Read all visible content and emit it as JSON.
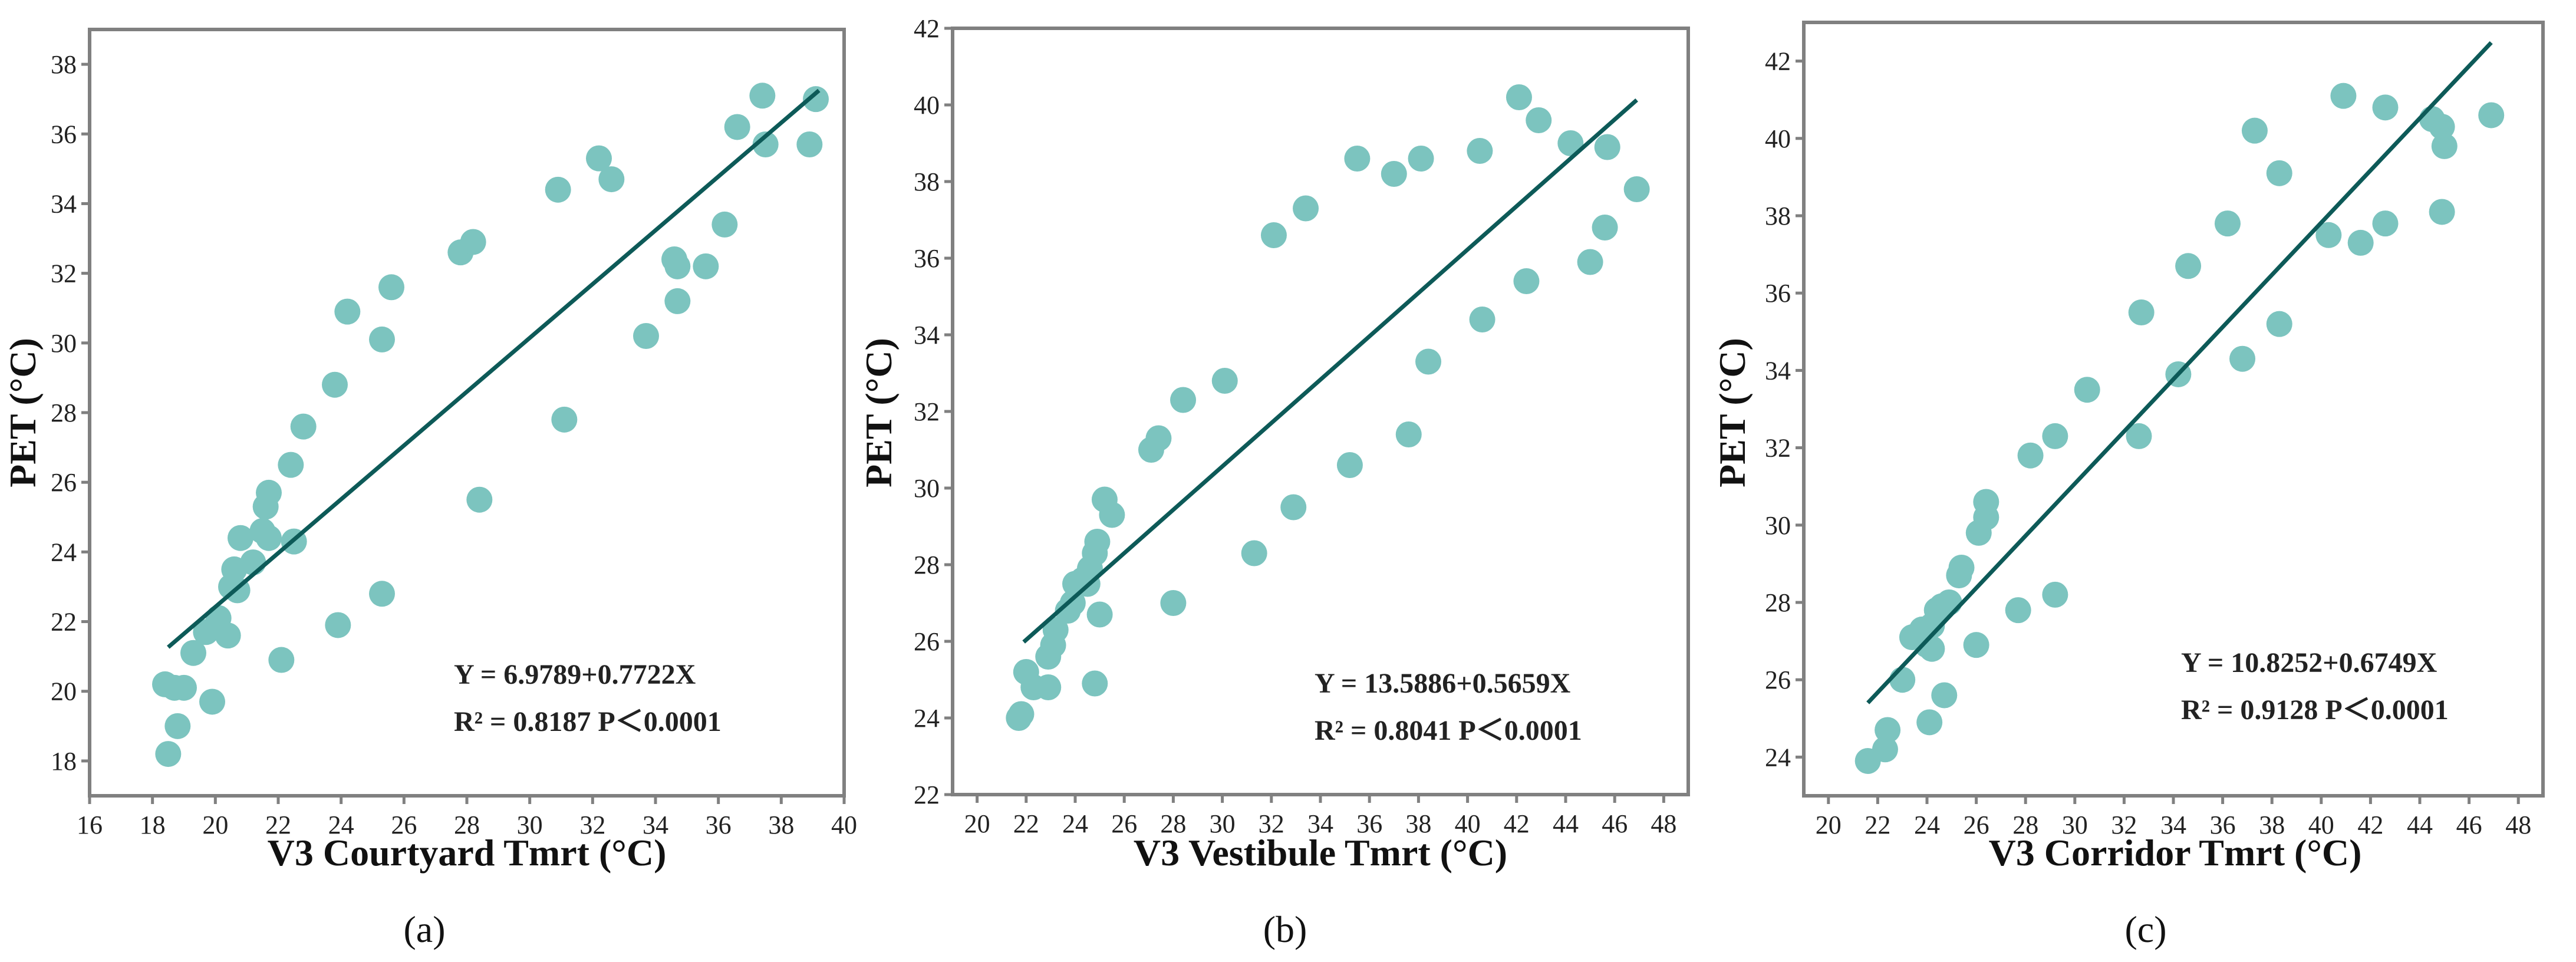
{
  "chart_data": [
    {
      "type": "scatter",
      "panel_label": "(a)",
      "xlabel": "V3 Courtyard Tmrt (°C)",
      "ylabel": "PET (°C)",
      "xlim": [
        16,
        40
      ],
      "ylim": [
        17,
        39
      ],
      "xticks": [
        16,
        18,
        20,
        22,
        24,
        26,
        28,
        30,
        32,
        34,
        36,
        38,
        40
      ],
      "yticks": [
        18,
        20,
        22,
        24,
        26,
        28,
        30,
        32,
        34,
        36,
        38
      ],
      "equation": "Y = 6.9789+0.7722X",
      "r2_label": "R² = 0.8187  P＜0.0001",
      "fit": {
        "intercept": 6.9789,
        "slope": 0.7722,
        "x_range": [
          18.5,
          39.2
        ]
      },
      "points": [
        [
          18.5,
          18.2
        ],
        [
          18.4,
          20.2
        ],
        [
          18.7,
          20.1
        ],
        [
          19.0,
          20.1
        ],
        [
          18.8,
          19.0
        ],
        [
          19.3,
          21.1
        ],
        [
          19.7,
          21.7
        ],
        [
          20.1,
          22.1
        ],
        [
          19.9,
          19.7
        ],
        [
          20.4,
          21.6
        ],
        [
          20.5,
          23.0
        ],
        [
          20.7,
          22.9
        ],
        [
          20.6,
          23.5
        ],
        [
          20.8,
          24.4
        ],
        [
          21.2,
          23.7
        ],
        [
          21.5,
          24.6
        ],
        [
          21.7,
          24.4
        ],
        [
          21.6,
          25.3
        ],
        [
          21.7,
          25.7
        ],
        [
          22.1,
          20.9
        ],
        [
          22.5,
          24.3
        ],
        [
          22.4,
          26.5
        ],
        [
          22.8,
          27.6
        ],
        [
          23.8,
          28.8
        ],
        [
          23.9,
          21.9
        ],
        [
          24.2,
          30.9
        ],
        [
          25.3,
          30.1
        ],
        [
          25.3,
          22.8
        ],
        [
          25.6,
          31.6
        ],
        [
          27.8,
          32.6
        ],
        [
          28.2,
          32.9
        ],
        [
          28.4,
          25.5
        ],
        [
          30.9,
          34.4
        ],
        [
          31.1,
          27.8
        ],
        [
          32.2,
          35.3
        ],
        [
          32.6,
          34.7
        ],
        [
          33.7,
          30.2
        ],
        [
          34.6,
          32.4
        ],
        [
          34.7,
          32.2
        ],
        [
          34.7,
          31.2
        ],
        [
          35.6,
          32.2
        ],
        [
          36.2,
          33.4
        ],
        [
          36.6,
          36.2
        ],
        [
          37.4,
          37.1
        ],
        [
          37.5,
          35.7
        ],
        [
          38.9,
          35.7
        ],
        [
          39.1,
          37.0
        ]
      ]
    },
    {
      "type": "scatter",
      "panel_label": "(b)",
      "xlabel": "V3 Vestibule Tmrt (°C)",
      "ylabel": "PET (°C)",
      "xlim": [
        19,
        49
      ],
      "ylim": [
        22,
        42
      ],
      "xticks": [
        20,
        22,
        24,
        26,
        28,
        30,
        32,
        34,
        36,
        38,
        40,
        42,
        44,
        46,
        48
      ],
      "yticks": [
        22,
        24,
        26,
        28,
        30,
        32,
        34,
        36,
        38,
        40,
        42
      ],
      "equation": "Y = 13.5886+0.5659X",
      "r2_label": "R² = 0.8041  P＜0.0001",
      "fit": {
        "intercept": 13.5886,
        "slope": 0.5659,
        "x_range": [
          21.9,
          46.9
        ]
      },
      "points": [
        [
          21.7,
          24.0
        ],
        [
          21.8,
          24.1
        ],
        [
          22.0,
          25.2
        ],
        [
          22.3,
          24.8
        ],
        [
          22.9,
          24.8
        ],
        [
          22.9,
          25.6
        ],
        [
          23.1,
          25.9
        ],
        [
          23.2,
          26.3
        ],
        [
          23.7,
          26.8
        ],
        [
          23.9,
          27.0
        ],
        [
          24.0,
          27.5
        ],
        [
          24.3,
          27.6
        ],
        [
          24.5,
          27.5
        ],
        [
          24.6,
          27.9
        ],
        [
          24.8,
          28.3
        ],
        [
          24.9,
          28.6
        ],
        [
          24.8,
          24.9
        ],
        [
          25.0,
          26.7
        ],
        [
          25.2,
          29.7
        ],
        [
          25.5,
          29.3
        ],
        [
          27.1,
          31.0
        ],
        [
          27.4,
          31.3
        ],
        [
          28.0,
          27.0
        ],
        [
          28.4,
          32.3
        ],
        [
          30.1,
          32.8
        ],
        [
          31.3,
          28.3
        ],
        [
          32.1,
          36.6
        ],
        [
          32.9,
          29.5
        ],
        [
          33.4,
          37.3
        ],
        [
          35.2,
          30.6
        ],
        [
          35.5,
          38.6
        ],
        [
          37.0,
          38.2
        ],
        [
          37.6,
          31.4
        ],
        [
          38.1,
          38.6
        ],
        [
          38.4,
          33.3
        ],
        [
          40.5,
          38.8
        ],
        [
          40.6,
          34.4
        ],
        [
          42.1,
          40.2
        ],
        [
          42.4,
          35.4
        ],
        [
          42.9,
          39.6
        ],
        [
          44.2,
          39.0
        ],
        [
          45.0,
          35.9
        ],
        [
          45.6,
          36.8
        ],
        [
          45.7,
          38.9
        ],
        [
          46.9,
          37.8
        ]
      ]
    },
    {
      "type": "scatter",
      "panel_label": "(c)",
      "xlabel": "V3 Corridor Tmrt (°C)",
      "ylabel": "PET (°C)",
      "xlim": [
        19,
        49
      ],
      "ylim": [
        23,
        43
      ],
      "xticks": [
        20,
        22,
        24,
        26,
        28,
        30,
        32,
        34,
        36,
        38,
        40,
        42,
        44,
        46,
        48
      ],
      "yticks": [
        24,
        26,
        28,
        30,
        32,
        34,
        36,
        38,
        40,
        42
      ],
      "equation": "Y = 10.8252+0.6749X",
      "r2_label": "R² = 0.9128  P＜0.0001",
      "fit": {
        "intercept": 10.8252,
        "slope": 0.6749,
        "x_range": [
          21.6,
          46.9
        ]
      },
      "points": [
        [
          21.6,
          23.9
        ],
        [
          22.3,
          24.2
        ],
        [
          22.4,
          24.7
        ],
        [
          23.0,
          26.0
        ],
        [
          23.4,
          27.1
        ],
        [
          23.8,
          27.3
        ],
        [
          24.0,
          26.9
        ],
        [
          24.2,
          26.8
        ],
        [
          24.2,
          27.4
        ],
        [
          24.4,
          27.8
        ],
        [
          24.6,
          27.9
        ],
        [
          24.9,
          28.0
        ],
        [
          24.1,
          24.9
        ],
        [
          24.7,
          25.6
        ],
        [
          25.3,
          28.7
        ],
        [
          25.4,
          28.9
        ],
        [
          26.0,
          26.9
        ],
        [
          26.1,
          29.8
        ],
        [
          26.4,
          30.2
        ],
        [
          26.4,
          30.6
        ],
        [
          27.7,
          27.8
        ],
        [
          28.2,
          31.8
        ],
        [
          29.2,
          32.3
        ],
        [
          29.2,
          28.2
        ],
        [
          30.5,
          33.5
        ],
        [
          32.7,
          35.5
        ],
        [
          32.6,
          32.3
        ],
        [
          34.2,
          33.9
        ],
        [
          34.6,
          36.7
        ],
        [
          36.2,
          37.8
        ],
        [
          36.8,
          34.3
        ],
        [
          37.3,
          40.2
        ],
        [
          38.3,
          39.1
        ],
        [
          38.3,
          35.2
        ],
        [
          40.3,
          37.5
        ],
        [
          40.9,
          41.1
        ],
        [
          41.6,
          37.3
        ],
        [
          42.6,
          37.8
        ],
        [
          42.6,
          40.8
        ],
        [
          44.5,
          40.5
        ],
        [
          44.9,
          40.3
        ],
        [
          45.0,
          39.8
        ],
        [
          44.9,
          38.1
        ],
        [
          46.9,
          40.6
        ]
      ]
    }
  ]
}
